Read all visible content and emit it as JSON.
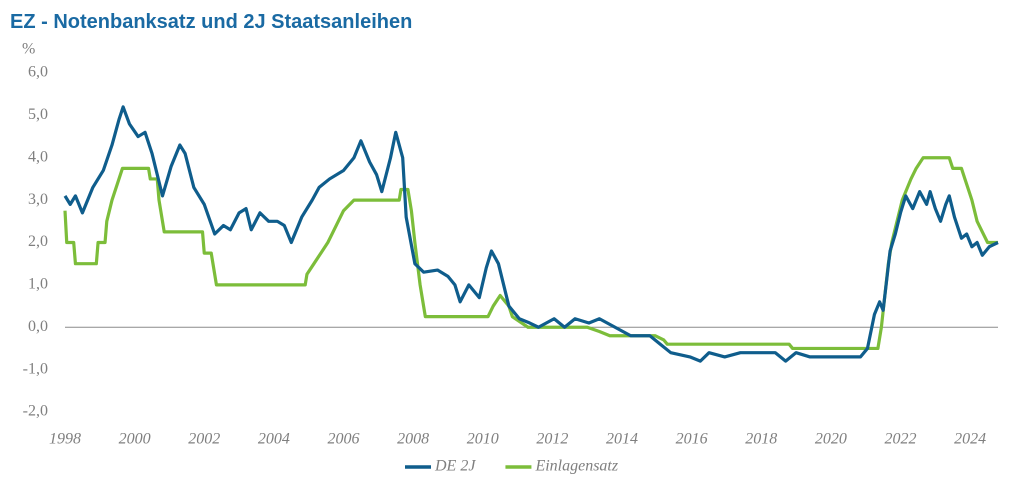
{
  "chart_data": {
    "type": "line",
    "title": "EZ - Notenbanksatz und 2J Staatsanleihen",
    "y_label": "%",
    "xlim": [
      1998,
      2024.8
    ],
    "xticks": [
      1998,
      2000,
      2002,
      2004,
      2006,
      2008,
      2010,
      2012,
      2014,
      2016,
      2018,
      2020,
      2022,
      2024
    ],
    "ylim": [
      -2,
      6
    ],
    "yticks": [
      {
        "value": -2,
        "label": "-2,0"
      },
      {
        "value": -1,
        "label": "-1,0"
      },
      {
        "value": 0,
        "label": "0,0"
      },
      {
        "value": 1,
        "label": "1,0"
      },
      {
        "value": 2,
        "label": "2,0"
      },
      {
        "value": 3,
        "label": "3,0"
      },
      {
        "value": 4,
        "label": "4,0"
      },
      {
        "value": 5,
        "label": "5,0"
      },
      {
        "value": 6,
        "label": "6,0"
      }
    ],
    "zero_line": true,
    "legend": "bottom",
    "series": [
      {
        "name": "DE 2J",
        "color": "#0f5d8c",
        "x": [
          1998.0,
          1998.15,
          1998.3,
          1998.5,
          1998.8,
          1999.1,
          1999.35,
          1999.55,
          1999.67,
          1999.85,
          2000.1,
          2000.3,
          2000.5,
          2000.8,
          2001.05,
          2001.3,
          2001.45,
          2001.7,
          2002.0,
          2002.3,
          2002.55,
          2002.75,
          2003.0,
          2003.2,
          2003.35,
          2003.6,
          2003.85,
          2004.1,
          2004.3,
          2004.5,
          2004.8,
          2005.1,
          2005.3,
          2005.6,
          2006.0,
          2006.3,
          2006.5,
          2006.75,
          2006.95,
          2007.1,
          2007.35,
          2007.5,
          2007.7,
          2007.8,
          2008.05,
          2008.3,
          2008.7,
          2009.0,
          2009.2,
          2009.35,
          2009.6,
          2009.9,
          2010.1,
          2010.25,
          2010.45,
          2010.75,
          2011.05,
          2011.35,
          2011.6,
          2012.05,
          2012.35,
          2012.65,
          2013.05,
          2013.35,
          2013.8,
          2014.25,
          2014.8,
          2015.1,
          2015.4,
          2015.95,
          2016.25,
          2016.5,
          2016.95,
          2017.4,
          2017.95,
          2018.4,
          2018.7,
          2019.0,
          2019.4,
          2020.0,
          2020.55,
          2020.85,
          2021.05,
          2021.25,
          2021.4,
          2021.5,
          2021.7,
          2021.85,
          2022.0,
          2022.15,
          2022.35,
          2022.55,
          2022.75,
          2022.85,
          2023.0,
          2023.15,
          2023.3,
          2023.4,
          2023.55,
          2023.75,
          2023.9,
          2024.05,
          2024.2,
          2024.35,
          2024.55,
          2024.8
        ],
        "values": [
          3.1,
          2.9,
          3.1,
          2.7,
          3.3,
          3.7,
          4.3,
          4.9,
          5.2,
          4.8,
          4.5,
          4.6,
          4.1,
          3.1,
          3.8,
          4.3,
          4.1,
          3.3,
          2.9,
          2.2,
          2.4,
          2.3,
          2.7,
          2.8,
          2.3,
          2.7,
          2.5,
          2.5,
          2.4,
          2.0,
          2.6,
          3.0,
          3.3,
          3.5,
          3.7,
          4.0,
          4.4,
          3.9,
          3.6,
          3.2,
          4.0,
          4.6,
          4.0,
          2.6,
          1.5,
          1.3,
          1.35,
          1.2,
          1.0,
          0.6,
          1.0,
          0.7,
          1.4,
          1.8,
          1.5,
          0.5,
          0.2,
          0.1,
          0.0,
          0.2,
          0.0,
          0.2,
          0.1,
          0.2,
          0.0,
          -0.2,
          -0.2,
          -0.4,
          -0.6,
          -0.7,
          -0.8,
          -0.6,
          -0.7,
          -0.6,
          -0.6,
          -0.6,
          -0.8,
          -0.6,
          -0.7,
          -0.7,
          -0.7,
          -0.7,
          -0.5,
          0.3,
          0.6,
          0.4,
          1.8,
          2.2,
          2.7,
          3.1,
          2.8,
          3.2,
          2.9,
          3.2,
          2.8,
          2.5,
          2.9,
          3.1,
          2.6,
          2.1,
          2.2,
          1.9,
          2.0,
          1.7,
          1.9,
          2.0
        ]
      },
      {
        "name": "Einlagensatz",
        "color": "#7cbd3a",
        "x": [
          1998.0,
          1998.05,
          1998.25,
          1998.3,
          1998.9,
          1998.95,
          1999.15,
          1999.2,
          1999.35,
          1999.55,
          1999.65,
          2000.4,
          2000.45,
          2000.65,
          2000.7,
          2000.85,
          2001.95,
          2002.0,
          2002.2,
          2002.25,
          2002.35,
          2004.9,
          2004.95,
          2005.15,
          2005.35,
          2005.55,
          2005.7,
          2005.85,
          2006.0,
          2006.3,
          2007.6,
          2007.65,
          2007.85,
          2007.95,
          2008.05,
          2008.2,
          2008.3,
          2008.35,
          2010.15,
          2010.3,
          2010.5,
          2010.75,
          2010.85,
          2011.3,
          2013.0,
          2013.35,
          2013.65,
          2014.95,
          2015.2,
          2015.3,
          2018.8,
          2018.9,
          2021.35,
          2021.45,
          2021.55,
          2021.65,
          2021.75,
          2021.9,
          2022.05,
          2022.3,
          2022.45,
          2022.65,
          2023.4,
          2023.5,
          2023.75,
          2023.85,
          2023.95,
          2024.05,
          2024.2,
          2024.35,
          2024.5,
          2024.8
        ],
        "values": [
          2.75,
          2.0,
          2.0,
          1.5,
          1.5,
          2.0,
          2.0,
          2.5,
          3.0,
          3.5,
          3.75,
          3.75,
          3.5,
          3.5,
          3.0,
          2.25,
          2.25,
          1.75,
          1.75,
          1.5,
          1.0,
          1.0,
          1.25,
          1.5,
          1.75,
          2.0,
          2.25,
          2.5,
          2.75,
          3.0,
          3.0,
          3.25,
          3.25,
          2.75,
          2.0,
          1.0,
          0.5,
          0.25,
          0.25,
          0.5,
          0.75,
          0.5,
          0.25,
          0.0,
          0.0,
          -0.1,
          -0.2,
          -0.2,
          -0.3,
          -0.4,
          -0.4,
          -0.5,
          -0.5,
          0.0,
          0.75,
          1.5,
          2.0,
          2.5,
          3.0,
          3.5,
          3.75,
          4.0,
          4.0,
          3.75,
          3.75,
          3.5,
          3.25,
          3.0,
          2.5,
          2.25,
          2.0,
          2.0
        ]
      }
    ]
  }
}
